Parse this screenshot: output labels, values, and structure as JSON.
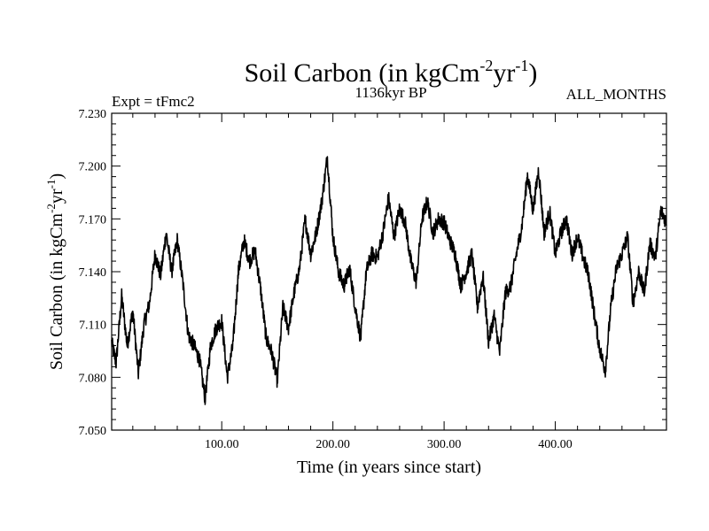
{
  "chart_data": {
    "type": "line",
    "title": {
      "main": "Soil Carbon (in kgCm",
      "sup1": "-2",
      "mid": "yr",
      "sup2": "-1",
      "end": ")"
    },
    "subtitle_left": "Expt = tFmc2",
    "subtitle_center": "1136kyr BP",
    "subtitle_right": "ALL_MONTHS",
    "xlabel": "Time (in years since start)",
    "ylabel": {
      "main": "Soil Carbon (in kgCm",
      "sup1": "-2",
      "mid": "yr",
      "sup2": "-1",
      "end": ")"
    },
    "xlim": [
      1,
      500
    ],
    "ylim": [
      7.05,
      7.23
    ],
    "x_ticks": [
      100,
      200,
      300,
      400
    ],
    "x_tick_labels": [
      "100.00",
      "200.00",
      "300.00",
      "400.00"
    ],
    "y_ticks": [
      7.05,
      7.08,
      7.11,
      7.14,
      7.17,
      7.2,
      7.23
    ],
    "y_tick_labels": [
      "7.050",
      "7.080",
      "7.110",
      "7.140",
      "7.170",
      "7.200",
      "7.230"
    ],
    "series": [
      {
        "name": "Soil Carbon",
        "color": "#000000",
        "x": [
          1,
          5,
          10,
          15,
          20,
          25,
          30,
          35,
          40,
          45,
          50,
          55,
          60,
          65,
          70,
          75,
          80,
          85,
          90,
          95,
          100,
          105,
          110,
          115,
          120,
          125,
          130,
          135,
          140,
          145,
          150,
          155,
          160,
          165,
          170,
          175,
          180,
          185,
          190,
          195,
          200,
          205,
          210,
          215,
          220,
          225,
          230,
          235,
          240,
          245,
          250,
          255,
          260,
          265,
          270,
          275,
          280,
          285,
          290,
          295,
          300,
          305,
          310,
          315,
          320,
          325,
          330,
          335,
          340,
          345,
          350,
          355,
          360,
          365,
          370,
          375,
          380,
          385,
          390,
          395,
          400,
          405,
          410,
          415,
          420,
          425,
          430,
          435,
          440,
          445,
          450,
          455,
          460,
          465,
          470,
          475,
          480,
          485,
          490,
          495,
          500
        ],
        "y": [
          7.1,
          7.088,
          7.126,
          7.098,
          7.118,
          7.082,
          7.11,
          7.122,
          7.15,
          7.138,
          7.162,
          7.14,
          7.158,
          7.134,
          7.104,
          7.098,
          7.09,
          7.068,
          7.098,
          7.108,
          7.112,
          7.08,
          7.098,
          7.14,
          7.158,
          7.146,
          7.152,
          7.13,
          7.102,
          7.094,
          7.078,
          7.12,
          7.108,
          7.128,
          7.142,
          7.17,
          7.15,
          7.162,
          7.18,
          7.205,
          7.16,
          7.14,
          7.132,
          7.142,
          7.12,
          7.102,
          7.14,
          7.15,
          7.148,
          7.162,
          7.182,
          7.16,
          7.176,
          7.168,
          7.146,
          7.134,
          7.17,
          7.18,
          7.162,
          7.17,
          7.168,
          7.158,
          7.15,
          7.132,
          7.14,
          7.15,
          7.12,
          7.138,
          7.1,
          7.115,
          7.094,
          7.128,
          7.132,
          7.15,
          7.166,
          7.195,
          7.175,
          7.198,
          7.162,
          7.174,
          7.15,
          7.162,
          7.17,
          7.15,
          7.16,
          7.148,
          7.138,
          7.116,
          7.096,
          7.084,
          7.12,
          7.142,
          7.15,
          7.16,
          7.122,
          7.14,
          7.128,
          7.156,
          7.148,
          7.175,
          7.168
        ]
      }
    ]
  }
}
